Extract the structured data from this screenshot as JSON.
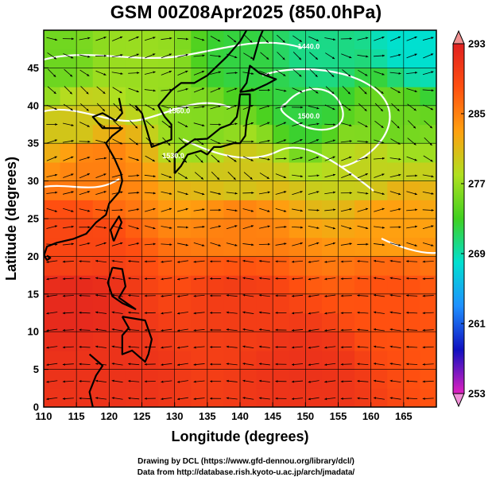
{
  "title": "GSM 00Z08Apr2025 (850.0hPa)",
  "credits": {
    "line1": "Drawing by DCL (https://www.gfd-dennou.org/library/dcl/)",
    "line2": "Data from http://database.rish.kyoto-u.ac.jp/arch/jmadata/"
  },
  "chart_data": {
    "type": "heatmap",
    "title": "GSM 00Z08Apr2025 (850.0hPa)",
    "xlabel": "Longitude (degrees)",
    "ylabel": "Latitude  (degrees)",
    "xlim": [
      110,
      170
    ],
    "ylim": [
      0,
      50
    ],
    "x_ticks": [
      110,
      115,
      120,
      125,
      130,
      135,
      140,
      145,
      150,
      155,
      160,
      165
    ],
    "y_ticks": [
      0,
      5,
      10,
      15,
      20,
      25,
      30,
      35,
      40,
      45
    ],
    "grid": true,
    "colorbar": {
      "min": 253,
      "max": 293,
      "ticks": [
        253,
        261,
        269,
        277,
        285,
        293
      ],
      "colors": [
        "#e020c0",
        "#1010c0",
        "#1e90ff",
        "#00e0d0",
        "#40d020",
        "#b0e020",
        "#ffa010",
        "#ff5010",
        "#e02020"
      ]
    },
    "temperature_field_samples": [
      {
        "lon": 112,
        "lat": 45,
        "value": 275
      },
      {
        "lon": 125,
        "lat": 45,
        "value": 277
      },
      {
        "lon": 140,
        "lat": 45,
        "value": 272
      },
      {
        "lon": 152,
        "lat": 46,
        "value": 270
      },
      {
        "lon": 167,
        "lat": 48,
        "value": 268
      },
      {
        "lon": 115,
        "lat": 38,
        "value": 280
      },
      {
        "lon": 135,
        "lat": 38,
        "value": 276
      },
      {
        "lon": 150,
        "lat": 40,
        "value": 272
      },
      {
        "lon": 162,
        "lat": 38,
        "value": 275
      },
      {
        "lon": 118,
        "lat": 32,
        "value": 285
      },
      {
        "lon": 140,
        "lat": 31,
        "value": 280
      },
      {
        "lon": 160,
        "lat": 32,
        "value": 279
      },
      {
        "lon": 115,
        "lat": 22,
        "value": 289
      },
      {
        "lon": 140,
        "lat": 24,
        "value": 285
      },
      {
        "lon": 163,
        "lat": 25,
        "value": 283
      },
      {
        "lon": 115,
        "lat": 14,
        "value": 292
      },
      {
        "lon": 140,
        "lat": 14,
        "value": 290
      },
      {
        "lon": 163,
        "lat": 14,
        "value": 288
      },
      {
        "lon": 120,
        "lat": 5,
        "value": 291
      },
      {
        "lon": 150,
        "lat": 5,
        "value": 291
      }
    ],
    "annotations": [
      {
        "text": "1440.0",
        "lon": 150.5,
        "lat": 47.5
      },
      {
        "text": "1500.0",
        "lon": 150.5,
        "lat": 38.3
      },
      {
        "text": "1560.0",
        "lon": 130.7,
        "lat": 39.0
      },
      {
        "text": "1530.0",
        "lon": 129.8,
        "lat": 33.0
      }
    ]
  }
}
